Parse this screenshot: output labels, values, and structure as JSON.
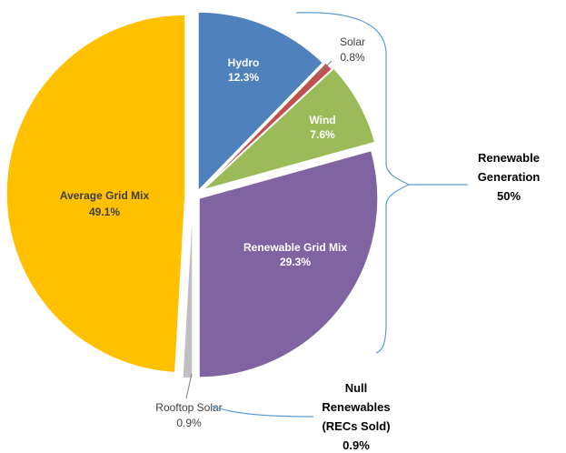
{
  "chart_data": {
    "type": "pie",
    "slices": [
      {
        "label": "Hydro",
        "value": 12.3,
        "value_text": "12.3%",
        "color": "#4F81BD"
      },
      {
        "label": "Solar",
        "value": 0.8,
        "value_text": "0.8%",
        "color": "#C0504D"
      },
      {
        "label": "Wind",
        "value": 7.6,
        "value_text": "7.6%",
        "color": "#9BBB59"
      },
      {
        "label": "Renewable Grid Mix",
        "value": 29.3,
        "value_text": "29.3%",
        "color": "#8064A2"
      },
      {
        "label": "Rooftop Solar",
        "value": 0.9,
        "value_text": "0.9%",
        "color": "#BFBFBF"
      },
      {
        "label": "Average Grid Mix",
        "value": 49.1,
        "value_text": "49.1%",
        "color": "#FFC000"
      }
    ],
    "groups": [
      {
        "lines": [
          "Renewable",
          "Generation",
          "50%"
        ]
      },
      {
        "lines": [
          "Null",
          "Renewables",
          "(RECs Sold)",
          "0.9%"
        ]
      }
    ],
    "bracket_color": "#5B9BD5"
  }
}
